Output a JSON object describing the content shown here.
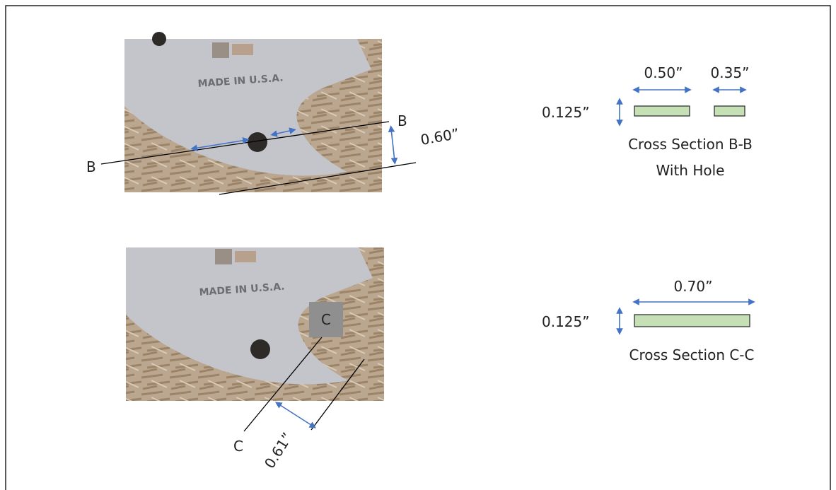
{
  "top_view": {
    "engraving": "MADE IN U.S.A.",
    "section_left": "B",
    "section_right": "B",
    "width": "0.60”"
  },
  "bottom_view": {
    "engraving": "MADE IN U.S.A.",
    "section_top": "C",
    "section_bottom": "C",
    "width": "0.61”"
  },
  "section_b": {
    "width_left": "0.50”",
    "width_right": "0.35”",
    "thickness": "0.125”",
    "title": "Cross Section B-B",
    "subtitle": "With Hole"
  },
  "section_c": {
    "width": "0.70”",
    "thickness": "0.125”",
    "title": "Cross Section C-C"
  }
}
